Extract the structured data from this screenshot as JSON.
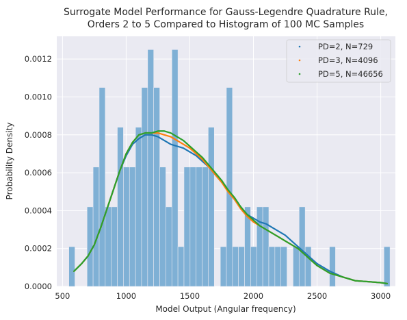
{
  "chart_data": {
    "type": "bar",
    "title": [
      "Surrogate Model Performance for Gauss-Legendre Quadrature Rule,",
      "Orders 2 to 5 Compared to Histogram of 100 MC Samples"
    ],
    "xlabel": "Model Output (Angular frequency)",
    "ylabel": "Probability Density",
    "xlim": [
      455,
      3115
    ],
    "ylim": [
      0,
      0.00132
    ],
    "xticks": [
      500,
      1000,
      1500,
      2000,
      2500,
      3000
    ],
    "yticks": [
      0.0,
      0.0002,
      0.0004,
      0.0006,
      0.0008,
      0.001,
      0.0012
    ],
    "ytick_labels": [
      "0.0000",
      "0.0002",
      "0.0004",
      "0.0006",
      "0.0008",
      "0.0010",
      "0.0012"
    ],
    "grid": true,
    "legend_position": "top-right",
    "histogram": {
      "bin_start": 550,
      "bin_width": 47.6,
      "densities": [
        0.00021,
        0,
        0,
        0.00042,
        0.00063,
        0.00105,
        0.00042,
        0.00042,
        0.00084,
        0.00063,
        0.00063,
        0.00084,
        0.00105,
        0.00125,
        0.00105,
        0.00063,
        0.00042,
        0.00125,
        0.00021,
        0.00063,
        0.00063,
        0.00063,
        0.00063,
        0.00084,
        0,
        0.00021,
        0.00105,
        0.00021,
        0.00021,
        0.00042,
        0.00021,
        0.00042,
        0.00042,
        0.00021,
        0.00021,
        0.00021,
        0,
        0.00021,
        0.00042,
        0.00021,
        0,
        0,
        0,
        0.00021,
        0,
        0,
        0,
        0,
        0,
        0,
        0,
        0,
        0.00021
      ]
    },
    "series": [
      {
        "name": "PD=2, N=729",
        "color": "#1f77b4",
        "x": [
          590,
          650,
          700,
          750,
          800,
          850,
          900,
          950,
          1000,
          1050,
          1100,
          1150,
          1200,
          1250,
          1300,
          1350,
          1400,
          1450,
          1500,
          1550,
          1600,
          1650,
          1700,
          1750,
          1800,
          1850,
          1900,
          1950,
          2000,
          2050,
          2100,
          2150,
          2200,
          2250,
          2300,
          2350,
          2400,
          2450,
          2500,
          2600,
          2700,
          2800,
          2900,
          3000,
          3050
        ],
        "y": [
          8e-05,
          0.00012,
          0.00016,
          0.00022,
          0.00031,
          0.00041,
          0.00051,
          0.00061,
          0.00069,
          0.00075,
          0.00078,
          0.0008,
          0.0008,
          0.00079,
          0.00077,
          0.00075,
          0.00074,
          0.00073,
          0.00071,
          0.00069,
          0.00066,
          0.00063,
          0.00059,
          0.00055,
          0.00051,
          0.00046,
          0.00042,
          0.00038,
          0.00036,
          0.00034,
          0.00033,
          0.00031,
          0.00029,
          0.00027,
          0.00024,
          0.00021,
          0.00018,
          0.00015,
          0.00012,
          8e-05,
          5e-05,
          3e-05,
          2.5e-05,
          2e-05,
          1.5e-05
        ]
      },
      {
        "name": "PD=3, N=4096",
        "color": "#ff7f0e",
        "x": [
          590,
          650,
          700,
          750,
          800,
          850,
          900,
          950,
          1000,
          1050,
          1100,
          1150,
          1200,
          1250,
          1300,
          1350,
          1400,
          1450,
          1500,
          1550,
          1600,
          1650,
          1700,
          1750,
          1800,
          1850,
          1900,
          1950,
          2000,
          2050,
          2100,
          2150,
          2200,
          2250,
          2300,
          2350,
          2400,
          2450,
          2500,
          2600,
          2700,
          2800,
          2900,
          3000,
          3050
        ],
        "y": [
          8e-05,
          0.00012,
          0.00016,
          0.00022,
          0.00031,
          0.00041,
          0.00051,
          0.00061,
          0.0007,
          0.00076,
          0.0008,
          0.00081,
          0.00081,
          0.00081,
          0.0008,
          0.00079,
          0.00077,
          0.00075,
          0.00073,
          0.0007,
          0.00067,
          0.00063,
          0.00059,
          0.00055,
          0.0005,
          0.00046,
          0.00041,
          0.00037,
          0.00034,
          0.00032,
          0.0003,
          0.00028,
          0.00026,
          0.00024,
          0.00022,
          0.0002,
          0.00017,
          0.00014,
          0.00011,
          7e-05,
          5e-05,
          3e-05,
          2.5e-05,
          2e-05,
          1.5e-05
        ]
      },
      {
        "name": "PD=5, N=46656",
        "color": "#2ca02c",
        "x": [
          590,
          650,
          700,
          750,
          800,
          850,
          900,
          950,
          1000,
          1050,
          1100,
          1150,
          1200,
          1250,
          1300,
          1350,
          1400,
          1450,
          1500,
          1550,
          1600,
          1650,
          1700,
          1750,
          1800,
          1850,
          1900,
          1950,
          2000,
          2050,
          2100,
          2150,
          2200,
          2250,
          2300,
          2350,
          2400,
          2450,
          2500,
          2600,
          2700,
          2800,
          2900,
          3000,
          3050
        ],
        "y": [
          8e-05,
          0.00012,
          0.00016,
          0.00022,
          0.00031,
          0.00041,
          0.00051,
          0.00061,
          0.0007,
          0.00076,
          0.0008,
          0.00081,
          0.00081,
          0.00082,
          0.00082,
          0.00081,
          0.00079,
          0.00077,
          0.00074,
          0.00071,
          0.00068,
          0.00064,
          0.0006,
          0.00056,
          0.00051,
          0.00047,
          0.00042,
          0.00038,
          0.00035,
          0.00032,
          0.0003,
          0.00028,
          0.00026,
          0.00024,
          0.00022,
          0.0002,
          0.00017,
          0.00014,
          0.00011,
          7e-05,
          5e-05,
          3e-05,
          2.5e-05,
          2e-05,
          1.5e-05
        ]
      }
    ],
    "histogram_color": "#7fb0d5"
  }
}
